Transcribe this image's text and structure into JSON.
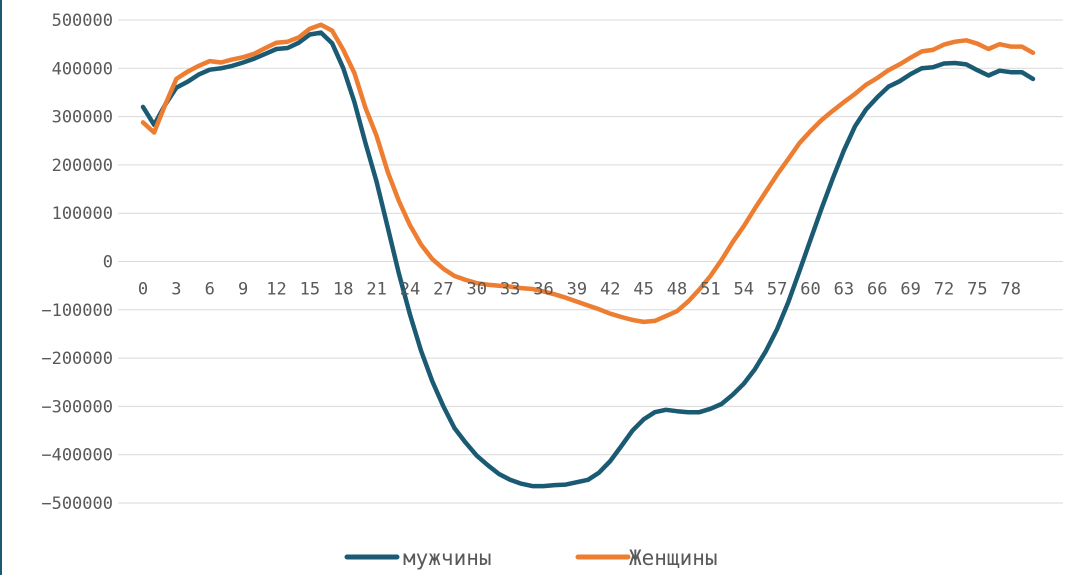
{
  "chart_data": {
    "type": "line",
    "title": "",
    "xlabel": "",
    "ylabel": "",
    "x": [
      0,
      1,
      2,
      3,
      4,
      5,
      6,
      7,
      8,
      9,
      10,
      11,
      12,
      13,
      14,
      15,
      16,
      17,
      18,
      19,
      20,
      21,
      22,
      23,
      24,
      25,
      26,
      27,
      28,
      29,
      30,
      31,
      32,
      33,
      34,
      35,
      36,
      37,
      38,
      39,
      40,
      41,
      42,
      43,
      44,
      45,
      46,
      47,
      48,
      49,
      50,
      51,
      52,
      53,
      54,
      55,
      56,
      57,
      58,
      59,
      60,
      61,
      62,
      63,
      64,
      65,
      66,
      67,
      68,
      69,
      70,
      71,
      72,
      73,
      74,
      75,
      76,
      77,
      78,
      79,
      80
    ],
    "x_tick_labels": [
      "0",
      "3",
      "6",
      "9",
      "12",
      "15",
      "18",
      "21",
      "24",
      "27",
      "30",
      "33",
      "36",
      "39",
      "42",
      "45",
      "48",
      "51",
      "54",
      "57",
      "60",
      "63",
      "66",
      "69",
      "72",
      "75",
      "78"
    ],
    "x_tick_values": [
      0,
      3,
      6,
      9,
      12,
      15,
      18,
      21,
      24,
      27,
      30,
      33,
      36,
      39,
      42,
      45,
      48,
      51,
      54,
      57,
      60,
      63,
      66,
      69,
      72,
      75,
      78
    ],
    "ylim": [
      -500000,
      500000
    ],
    "y_ticks": [
      500000,
      400000,
      300000,
      200000,
      100000,
      0,
      -100000,
      -200000,
      -300000,
      -400000,
      -500000
    ],
    "y_tick_labels": [
      "500000",
      "400000",
      "300000",
      "200000",
      "100000",
      "0",
      "−100000",
      "−200000",
      "−300000",
      "−400000",
      "−500000"
    ],
    "grid": true,
    "legend_position": "bottom",
    "series": [
      {
        "name": "мужчины",
        "color": "#1b5a73",
        "values": [
          320000,
          283000,
          325000,
          360000,
          372000,
          387000,
          397000,
          400000,
          405000,
          412000,
          420000,
          430000,
          440000,
          442000,
          453000,
          470000,
          474000,
          452000,
          400000,
          330000,
          245000,
          165000,
          70000,
          -25000,
          -110000,
          -185000,
          -248000,
          -300000,
          -345000,
          -375000,
          -402000,
          -422000,
          -440000,
          -452000,
          -460000,
          -465000,
          -465000,
          -463000,
          -462000,
          -457000,
          -452000,
          -437000,
          -413000,
          -382000,
          -350000,
          -327000,
          -312000,
          -307000,
          -310000,
          -312000,
          -312000,
          -305000,
          -295000,
          -276000,
          -253000,
          -223000,
          -185000,
          -140000,
          -84000,
          -20000,
          45000,
          110000,
          172000,
          230000,
          280000,
          315000,
          340000,
          362000,
          373000,
          388000,
          400000,
          402000,
          410000,
          411000,
          408000,
          396000,
          385000,
          395000,
          392000,
          392000,
          378000
        ]
      },
      {
        "name": "Женщины",
        "color": "#ed7d31",
        "values": [
          288000,
          267000,
          325000,
          378000,
          393000,
          405000,
          415000,
          412000,
          418000,
          423000,
          430000,
          442000,
          453000,
          455000,
          464000,
          482000,
          490000,
          478000,
          438000,
          390000,
          318000,
          260000,
          185000,
          125000,
          75000,
          35000,
          5000,
          -15000,
          -30000,
          -38000,
          -45000,
          -48000,
          -50000,
          -52000,
          -55000,
          -57000,
          -62000,
          -68000,
          -75000,
          -83000,
          -91000,
          -99000,
          -108000,
          -115000,
          -121000,
          -125000,
          -123000,
          -113000,
          -103000,
          -83000,
          -58000,
          -30000,
          3000,
          40000,
          73000,
          110000,
          145000,
          180000,
          212000,
          245000,
          270000,
          293000,
          312000,
          330000,
          347000,
          366000,
          380000,
          396000,
          408000,
          422000,
          435000,
          438000,
          449000,
          455000,
          458000,
          451000,
          440000,
          450000,
          445000,
          445000,
          432000
        ]
      }
    ]
  }
}
